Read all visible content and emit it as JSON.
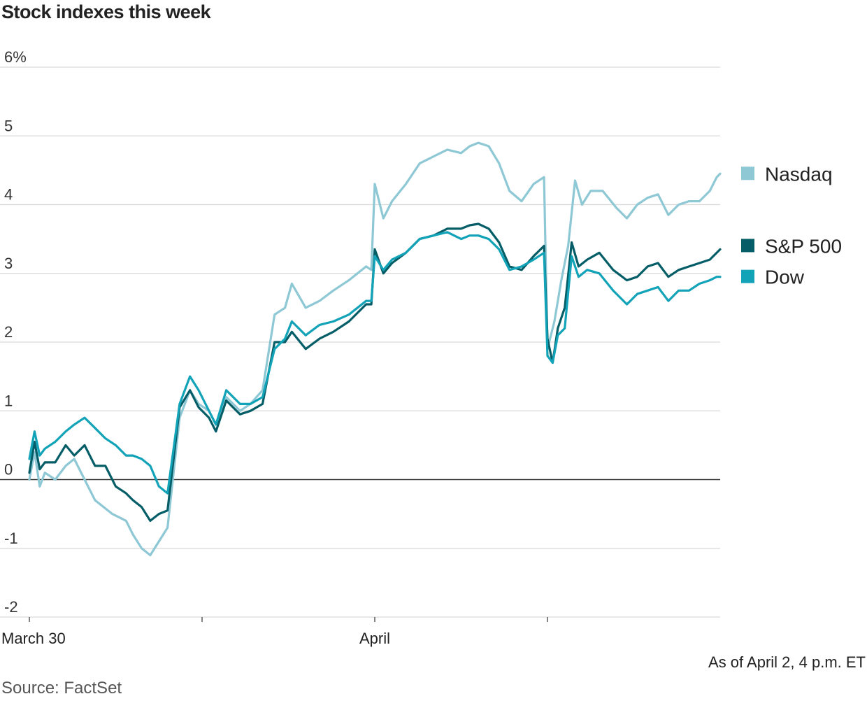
{
  "chart_data": {
    "type": "line",
    "title": "Stock indexes this week",
    "xlabel": "",
    "ylabel": "",
    "ylim": [
      -2,
      6
    ],
    "y_ticks": [
      {
        "value": 6,
        "label": "6%"
      },
      {
        "value": 5,
        "label": "5"
      },
      {
        "value": 4,
        "label": "4"
      },
      {
        "value": 3,
        "label": "3"
      },
      {
        "value": 2,
        "label": "2"
      },
      {
        "value": 1,
        "label": "1"
      },
      {
        "value": 0,
        "label": "0"
      },
      {
        "value": -1,
        "label": "-1"
      },
      {
        "value": -2,
        "label": "-2"
      }
    ],
    "x_ticks": [
      {
        "x": 0,
        "label": "March 30"
      },
      {
        "x": 1,
        "label": ""
      },
      {
        "x": 2,
        "label": "April"
      },
      {
        "x": 3,
        "label": ""
      }
    ],
    "xlim": [
      0,
      4
    ],
    "zero_line": true,
    "grid": true,
    "legend_position": "right",
    "series": [
      {
        "name": "Nasdaq",
        "color": "#8ec8d5",
        "points": [
          [
            0.0,
            0.0
          ],
          [
            0.03,
            0.4
          ],
          [
            0.06,
            -0.1
          ],
          [
            0.09,
            0.1
          ],
          [
            0.15,
            0.0
          ],
          [
            0.21,
            0.2
          ],
          [
            0.26,
            0.3
          ],
          [
            0.32,
            0.0
          ],
          [
            0.38,
            -0.3
          ],
          [
            0.48,
            -0.5
          ],
          [
            0.56,
            -0.6
          ],
          [
            0.6,
            -0.8
          ],
          [
            0.65,
            -1.0
          ],
          [
            0.7,
            -1.1
          ],
          [
            0.75,
            -0.9
          ],
          [
            0.8,
            -0.7
          ],
          [
            0.87,
            0.9
          ],
          [
            0.93,
            1.3
          ],
          [
            0.98,
            1.1
          ],
          [
            1.04,
            1.0
          ],
          [
            1.08,
            0.8
          ],
          [
            1.14,
            1.2
          ],
          [
            1.22,
            1.0
          ],
          [
            1.28,
            1.1
          ],
          [
            1.35,
            1.3
          ],
          [
            1.42,
            2.4
          ],
          [
            1.48,
            2.5
          ],
          [
            1.52,
            2.85
          ],
          [
            1.6,
            2.5
          ],
          [
            1.68,
            2.6
          ],
          [
            1.76,
            2.75
          ],
          [
            1.85,
            2.9
          ],
          [
            1.95,
            3.1
          ],
          [
            1.98,
            3.05
          ],
          [
            2.0,
            4.3
          ],
          [
            2.05,
            3.8
          ],
          [
            2.1,
            4.05
          ],
          [
            2.18,
            4.3
          ],
          [
            2.26,
            4.6
          ],
          [
            2.34,
            4.7
          ],
          [
            2.42,
            4.8
          ],
          [
            2.5,
            4.75
          ],
          [
            2.55,
            4.85
          ],
          [
            2.6,
            4.9
          ],
          [
            2.66,
            4.85
          ],
          [
            2.72,
            4.6
          ],
          [
            2.78,
            4.2
          ],
          [
            2.85,
            4.05
          ],
          [
            2.92,
            4.3
          ],
          [
            2.98,
            4.4
          ],
          [
            3.0,
            1.9
          ],
          [
            3.04,
            2.3
          ],
          [
            3.08,
            2.9
          ],
          [
            3.12,
            3.4
          ],
          [
            3.16,
            4.35
          ],
          [
            3.2,
            4.0
          ],
          [
            3.25,
            4.2
          ],
          [
            3.32,
            4.2
          ],
          [
            3.4,
            3.95
          ],
          [
            3.46,
            3.8
          ],
          [
            3.52,
            4.0
          ],
          [
            3.58,
            4.1
          ],
          [
            3.64,
            4.15
          ],
          [
            3.7,
            3.85
          ],
          [
            3.76,
            4.0
          ],
          [
            3.82,
            4.05
          ],
          [
            3.88,
            4.05
          ],
          [
            3.94,
            4.2
          ],
          [
            3.98,
            4.4
          ],
          [
            4.0,
            4.45
          ]
        ]
      },
      {
        "name": "S&P 500",
        "color": "#055e67",
        "points": [
          [
            0.0,
            0.1
          ],
          [
            0.03,
            0.55
          ],
          [
            0.06,
            0.15
          ],
          [
            0.09,
            0.25
          ],
          [
            0.15,
            0.25
          ],
          [
            0.21,
            0.5
          ],
          [
            0.26,
            0.35
          ],
          [
            0.32,
            0.5
          ],
          [
            0.38,
            0.2
          ],
          [
            0.44,
            0.2
          ],
          [
            0.5,
            -0.1
          ],
          [
            0.56,
            -0.2
          ],
          [
            0.6,
            -0.3
          ],
          [
            0.65,
            -0.4
          ],
          [
            0.7,
            -0.6
          ],
          [
            0.75,
            -0.5
          ],
          [
            0.8,
            -0.45
          ],
          [
            0.87,
            1.05
          ],
          [
            0.93,
            1.3
          ],
          [
            0.98,
            1.05
          ],
          [
            1.04,
            0.9
          ],
          [
            1.08,
            0.7
          ],
          [
            1.14,
            1.15
          ],
          [
            1.22,
            0.95
          ],
          [
            1.28,
            1.0
          ],
          [
            1.35,
            1.1
          ],
          [
            1.42,
            2.0
          ],
          [
            1.48,
            2.0
          ],
          [
            1.52,
            2.15
          ],
          [
            1.6,
            1.9
          ],
          [
            1.68,
            2.05
          ],
          [
            1.76,
            2.15
          ],
          [
            1.85,
            2.3
          ],
          [
            1.95,
            2.55
          ],
          [
            1.98,
            2.55
          ],
          [
            2.0,
            3.35
          ],
          [
            2.05,
            3.0
          ],
          [
            2.1,
            3.15
          ],
          [
            2.18,
            3.3
          ],
          [
            2.26,
            3.5
          ],
          [
            2.34,
            3.55
          ],
          [
            2.42,
            3.65
          ],
          [
            2.5,
            3.65
          ],
          [
            2.55,
            3.7
          ],
          [
            2.6,
            3.72
          ],
          [
            2.66,
            3.65
          ],
          [
            2.72,
            3.45
          ],
          [
            2.78,
            3.1
          ],
          [
            2.85,
            3.05
          ],
          [
            2.92,
            3.25
          ],
          [
            2.98,
            3.4
          ],
          [
            3.0,
            2.05
          ],
          [
            3.03,
            1.7
          ],
          [
            3.06,
            2.2
          ],
          [
            3.1,
            2.5
          ],
          [
            3.14,
            3.45
          ],
          [
            3.18,
            3.1
          ],
          [
            3.23,
            3.2
          ],
          [
            3.3,
            3.3
          ],
          [
            3.38,
            3.05
          ],
          [
            3.46,
            2.9
          ],
          [
            3.52,
            2.95
          ],
          [
            3.58,
            3.1
          ],
          [
            3.64,
            3.15
          ],
          [
            3.7,
            2.95
          ],
          [
            3.76,
            3.05
          ],
          [
            3.82,
            3.1
          ],
          [
            3.88,
            3.15
          ],
          [
            3.94,
            3.2
          ],
          [
            3.98,
            3.3
          ],
          [
            4.0,
            3.35
          ]
        ]
      },
      {
        "name": "Dow",
        "color": "#12a3b8",
        "points": [
          [
            0.0,
            0.3
          ],
          [
            0.03,
            0.7
          ],
          [
            0.06,
            0.35
          ],
          [
            0.09,
            0.45
          ],
          [
            0.15,
            0.55
          ],
          [
            0.21,
            0.7
          ],
          [
            0.26,
            0.8
          ],
          [
            0.32,
            0.9
          ],
          [
            0.38,
            0.75
          ],
          [
            0.44,
            0.6
          ],
          [
            0.5,
            0.5
          ],
          [
            0.56,
            0.35
          ],
          [
            0.6,
            0.35
          ],
          [
            0.65,
            0.3
          ],
          [
            0.7,
            0.2
          ],
          [
            0.75,
            -0.1
          ],
          [
            0.8,
            -0.2
          ],
          [
            0.87,
            1.1
          ],
          [
            0.93,
            1.5
          ],
          [
            0.98,
            1.3
          ],
          [
            1.04,
            1.0
          ],
          [
            1.08,
            0.8
          ],
          [
            1.14,
            1.3
          ],
          [
            1.22,
            1.1
          ],
          [
            1.28,
            1.1
          ],
          [
            1.35,
            1.2
          ],
          [
            1.42,
            1.9
          ],
          [
            1.48,
            2.05
          ],
          [
            1.52,
            2.3
          ],
          [
            1.6,
            2.1
          ],
          [
            1.68,
            2.25
          ],
          [
            1.76,
            2.3
          ],
          [
            1.85,
            2.4
          ],
          [
            1.95,
            2.6
          ],
          [
            1.98,
            2.6
          ],
          [
            2.0,
            3.25
          ],
          [
            2.05,
            3.05
          ],
          [
            2.1,
            3.2
          ],
          [
            2.18,
            3.3
          ],
          [
            2.26,
            3.5
          ],
          [
            2.34,
            3.55
          ],
          [
            2.42,
            3.6
          ],
          [
            2.5,
            3.5
          ],
          [
            2.55,
            3.55
          ],
          [
            2.6,
            3.55
          ],
          [
            2.66,
            3.5
          ],
          [
            2.72,
            3.35
          ],
          [
            2.78,
            3.05
          ],
          [
            2.85,
            3.1
          ],
          [
            2.92,
            3.2
          ],
          [
            2.98,
            3.3
          ],
          [
            3.0,
            1.8
          ],
          [
            3.03,
            1.7
          ],
          [
            3.06,
            2.1
          ],
          [
            3.1,
            2.2
          ],
          [
            3.14,
            3.25
          ],
          [
            3.18,
            2.95
          ],
          [
            3.23,
            3.05
          ],
          [
            3.3,
            3.0
          ],
          [
            3.38,
            2.75
          ],
          [
            3.46,
            2.55
          ],
          [
            3.52,
            2.7
          ],
          [
            3.58,
            2.75
          ],
          [
            3.64,
            2.8
          ],
          [
            3.7,
            2.6
          ],
          [
            3.76,
            2.75
          ],
          [
            3.82,
            2.75
          ],
          [
            3.88,
            2.85
          ],
          [
            3.94,
            2.9
          ],
          [
            3.98,
            2.95
          ],
          [
            4.0,
            2.95
          ]
        ]
      }
    ],
    "legend_order": [
      "Nasdaq",
      "S&P 500",
      "Dow"
    ]
  },
  "notes": {
    "as_of": "As of April 2, 4 p.m. ET",
    "source": "Source: FactSet"
  }
}
